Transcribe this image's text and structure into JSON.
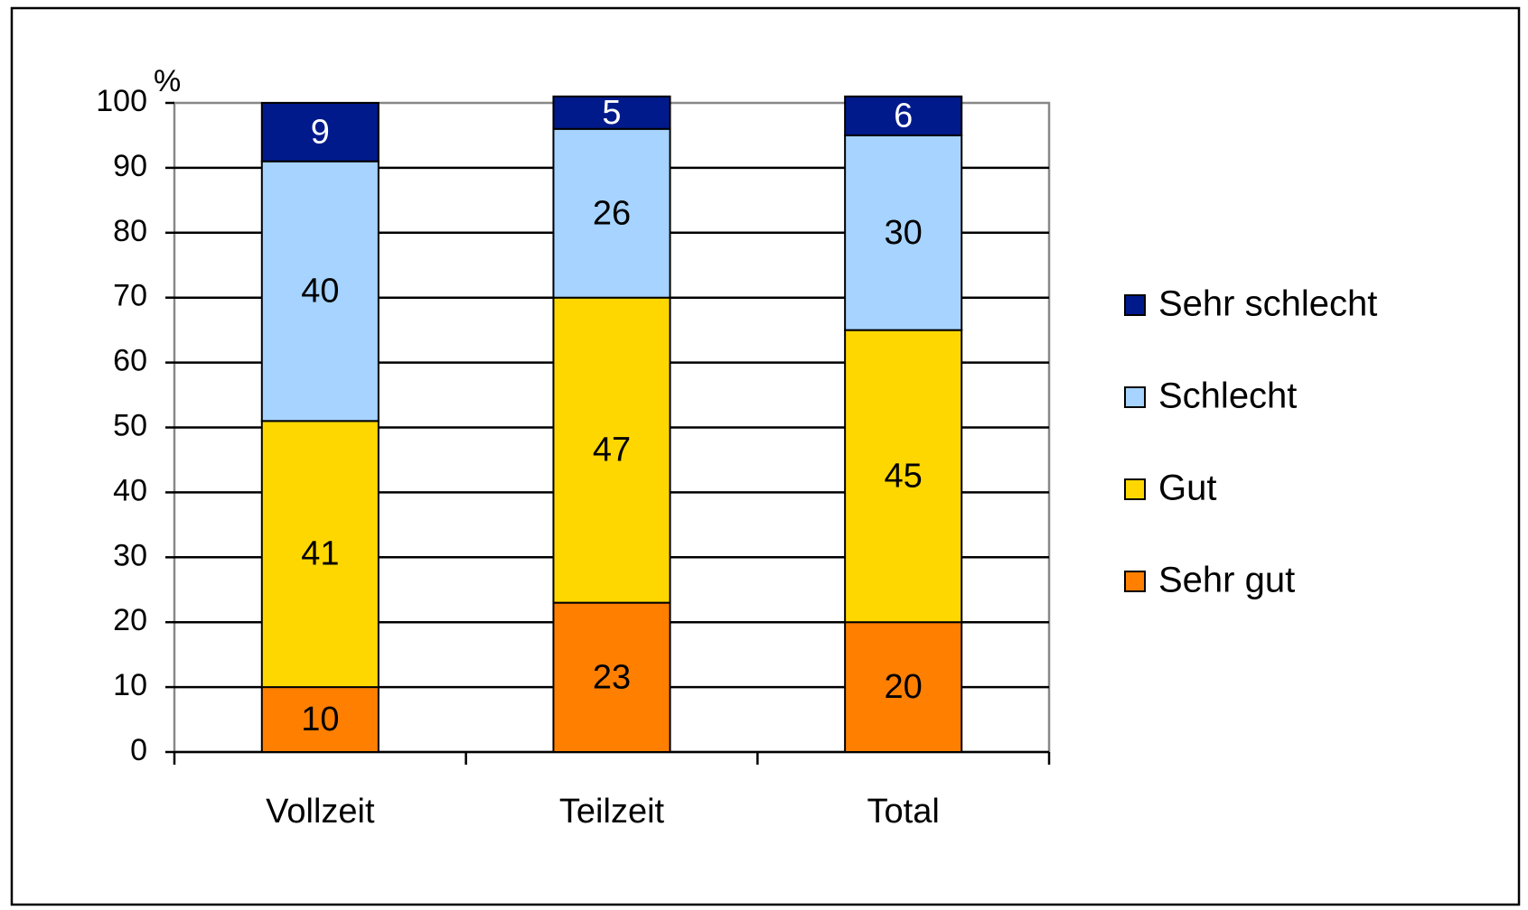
{
  "chart_data": {
    "type": "stacked_bar",
    "y_label": "%",
    "categories": [
      "Vollzeit",
      "Teilzeit",
      "Total"
    ],
    "series": [
      {
        "name": "Sehr gut",
        "color": "#ff7f00",
        "label_color": "#000000",
        "values": [
          10,
          23,
          20
        ]
      },
      {
        "name": "Gut",
        "color": "#ffd700",
        "label_color": "#000000",
        "values": [
          41,
          47,
          45
        ]
      },
      {
        "name": "Schlecht",
        "color": "#a6d3ff",
        "label_color": "#000000",
        "values": [
          40,
          26,
          30
        ]
      },
      {
        "name": "Sehr schlecht",
        "color": "#001a8c",
        "label_color": "#ffffff",
        "values": [
          9,
          5,
          6
        ]
      }
    ],
    "ylim": [
      0,
      100
    ],
    "yticks": [
      0,
      10,
      20,
      30,
      40,
      50,
      60,
      70,
      80,
      90,
      100
    ],
    "grid": true,
    "legend": "right"
  }
}
